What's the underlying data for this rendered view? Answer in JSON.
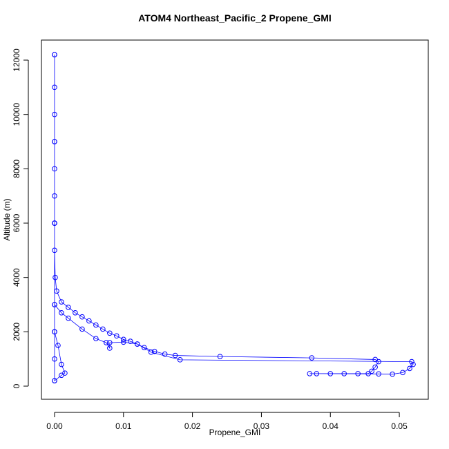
{
  "chart_data": {
    "type": "line",
    "title": "ATOM4 Northeast_Pacific_2 Propene_GMI",
    "xlabel": "Propene_GMI",
    "ylabel": "Altitude (m)",
    "series": [
      {
        "name": "Propene_GMI",
        "color": "#0000ff",
        "x": [
          0,
          0,
          0,
          0,
          0,
          0,
          0,
          0,
          0.0001,
          0.0003,
          0.001,
          0.002,
          0.003,
          0.004,
          0.005,
          0.006,
          0.007,
          0.008,
          0.009,
          0.01,
          0.011,
          0.012,
          0.013,
          0.0145,
          0.016,
          0.0175,
          0.024,
          0.0373,
          0.0465,
          0.047,
          0.0465,
          0.046,
          0.0455,
          0.044,
          0.042,
          0.04,
          0.038,
          0.037,
          0.047,
          0.049,
          0.0505,
          0.0515,
          0.052,
          0.0518,
          0.0182,
          0.014,
          0.012,
          0.01,
          0.008,
          0.008,
          0.0075,
          0.006,
          0.004,
          0.002,
          0.001,
          0,
          0,
          0.0005,
          0.001,
          0.0015,
          0.001,
          0,
          0,
          0,
          0,
          0,
          0,
          0,
          0,
          0
        ],
        "values": [
          12200,
          11000,
          10000,
          9000,
          8000,
          7000,
          6000,
          5000,
          4000,
          3500,
          3100,
          2900,
          2700,
          2550,
          2400,
          2250,
          2100,
          1950,
          1850,
          1720,
          1650,
          1550,
          1420,
          1280,
          1180,
          1130,
          1090,
          1040,
          980,
          900,
          700,
          550,
          460,
          460,
          460,
          460,
          460,
          460,
          450,
          440,
          500,
          650,
          800,
          900,
          970,
          1250,
          1550,
          1620,
          1600,
          1400,
          1600,
          1750,
          2100,
          2500,
          2700,
          3000,
          2000,
          1500,
          800,
          480,
          400,
          200,
          1000,
          3000,
          6000,
          9000,
          12200,
          6000,
          2000,
          200
        ]
      }
    ],
    "xlim": [
      -0.0019,
      0.0542
    ],
    "ylim": [
      -483,
      12738
    ],
    "xticks": [
      {
        "value": 0,
        "label": "0.00"
      },
      0.01,
      0.02,
      0.03,
      0.04,
      0.05
    ],
    "yticks": [
      0,
      2000,
      4000,
      6000,
      8000,
      10000,
      12000
    ]
  }
}
